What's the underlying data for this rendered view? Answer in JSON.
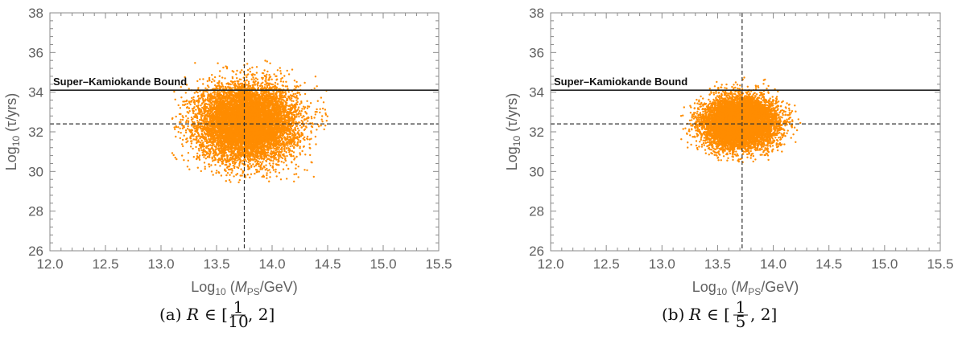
{
  "chart_data": [
    {
      "type": "scatter",
      "panel": "a",
      "xlim": [
        12.0,
        15.5
      ],
      "ylim": [
        26,
        38
      ],
      "xticks": [
        "12.0",
        "12.5",
        "13.0",
        "13.5",
        "14.0",
        "14.5",
        "15.0",
        "15.5"
      ],
      "yticks": [
        "26",
        "28",
        "30",
        "32",
        "34",
        "36",
        "38"
      ],
      "xlabel": "Log10 (MPS/GeV)",
      "ylabel": "Log10 (τ/yrs)",
      "bound_label": "Super–Kamiokande Bound",
      "bound_value": 34.1,
      "dashed_x": 13.75,
      "dashed_y": 32.4,
      "cloud": {
        "center_x": 13.78,
        "center_y": 32.45,
        "sd_x": 0.22,
        "sd_y": 0.95,
        "x_range": [
          13.1,
          14.5
        ],
        "y_range": [
          29.4,
          35.6
        ],
        "count": 9000
      },
      "point_color": "#ff8c00",
      "caption_prefix": "(a)",
      "caption_math": "R ∈ [1/10, 2]",
      "frac_num": "1",
      "frac_den": "10"
    },
    {
      "type": "scatter",
      "panel": "b",
      "xlim": [
        12.0,
        15.5
      ],
      "ylim": [
        26,
        38
      ],
      "xticks": [
        "12.0",
        "12.5",
        "13.0",
        "13.5",
        "14.0",
        "14.5",
        "15.0",
        "15.5"
      ],
      "yticks": [
        "26",
        "28",
        "30",
        "32",
        "34",
        "36",
        "38"
      ],
      "xlabel": "Log10 (MPS/GeV)",
      "ylabel": "Log10 (τ/yrs)",
      "bound_label": "Super–Kamiokande Bound",
      "bound_value": 34.1,
      "dashed_x": 13.72,
      "dashed_y": 32.4,
      "cloud": {
        "center_x": 13.7,
        "center_y": 32.45,
        "sd_x": 0.16,
        "sd_y": 0.62,
        "x_range": [
          13.15,
          14.25
        ],
        "y_range": [
          30.4,
          34.9
        ],
        "count": 9000
      },
      "point_color": "#ff8c00",
      "caption_prefix": "(b)",
      "caption_math": "R ∈ [1/5, 2]",
      "frac_num": "1",
      "frac_den": "5"
    }
  ]
}
